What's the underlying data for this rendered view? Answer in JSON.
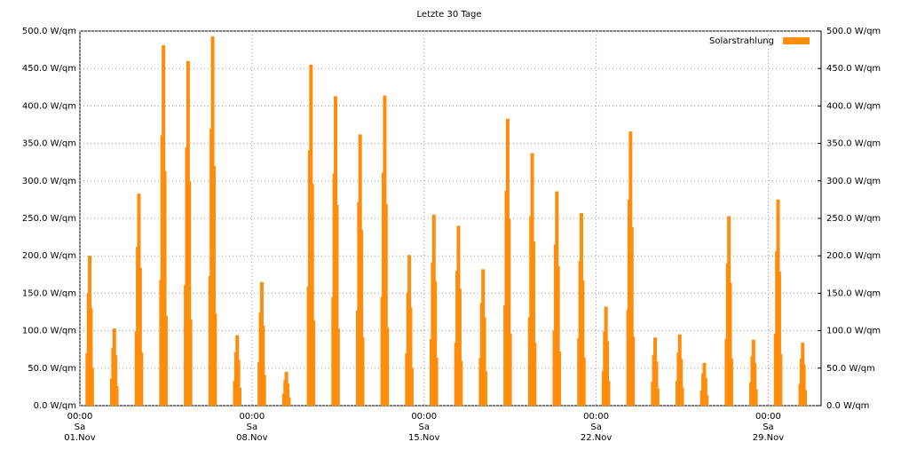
{
  "chart_data": {
    "type": "bar",
    "title": "Letzte 30 Tage",
    "legend": "upper right",
    "grid": true,
    "series": [
      {
        "name": "Solarstrahlung",
        "color": "#ff8c0a",
        "x": [
          0.3,
          0.35,
          0.4,
          0.45,
          0.5,
          1.3,
          1.35,
          1.4,
          1.45,
          1.5,
          2.3,
          2.35,
          2.4,
          2.45,
          2.5,
          3.3,
          3.35,
          3.4,
          3.45,
          3.5,
          4.3,
          4.35,
          4.4,
          4.45,
          4.5,
          5.3,
          5.35,
          5.4,
          5.45,
          5.5,
          6.3,
          6.35,
          6.4,
          6.45,
          6.5,
          7.3,
          7.35,
          7.4,
          7.45,
          7.5,
          8.3,
          8.35,
          8.4,
          8.45,
          8.5,
          9.3,
          9.35,
          9.4,
          9.45,
          9.5,
          10.3,
          10.35,
          10.4,
          10.45,
          10.5,
          11.3,
          11.35,
          11.4,
          11.45,
          11.5,
          12.3,
          12.35,
          12.4,
          12.45,
          12.5,
          13.3,
          13.35,
          13.4,
          13.45,
          13.5,
          14.3,
          14.35,
          14.4,
          14.45,
          14.5,
          15.3,
          15.35,
          15.4,
          15.45,
          15.5,
          16.3,
          16.35,
          16.4,
          16.45,
          16.5,
          17.3,
          17.35,
          17.4,
          17.45,
          17.5,
          18.3,
          18.35,
          18.4,
          18.45,
          18.5,
          19.3,
          19.35,
          19.4,
          19.45,
          19.5,
          20.3,
          20.35,
          20.4,
          20.45,
          20.5,
          21.3,
          21.35,
          21.4,
          21.45,
          21.5,
          22.3,
          22.35,
          22.4,
          22.45,
          22.5,
          23.3,
          23.35,
          23.4,
          23.45,
          23.5,
          24.3,
          24.35,
          24.4,
          24.45,
          24.5,
          25.3,
          25.35,
          25.4,
          25.45,
          25.5,
          26.3,
          26.35,
          26.4,
          26.45,
          26.5,
          27.3,
          27.35,
          27.4,
          27.45,
          27.5,
          28.3,
          28.35,
          28.4,
          28.45,
          28.5,
          29.3,
          29.35,
          29.4,
          29.45,
          29.5
        ],
        "values": [
          70,
          150,
          200,
          130,
          50,
          36,
          77,
          103,
          67,
          26,
          99,
          212,
          283,
          184,
          71,
          168,
          361,
          481,
          313,
          120,
          161,
          345,
          460,
          299,
          115,
          173,
          370,
          493,
          320,
          123,
          33,
          71,
          94,
          61,
          24,
          58,
          124,
          165,
          107,
          41,
          16,
          34,
          45,
          29,
          11,
          159,
          341,
          455,
          296,
          114,
          145,
          310,
          413,
          268,
          103,
          127,
          272,
          362,
          235,
          91,
          145,
          311,
          414,
          269,
          104,
          70,
          151,
          201,
          131,
          50,
          89,
          191,
          255,
          166,
          64,
          84,
          180,
          240,
          156,
          60,
          64,
          137,
          182,
          118,
          46,
          134,
          287,
          383,
          249,
          96,
          118,
          253,
          337,
          219,
          84,
          100,
          215,
          286,
          186,
          72,
          90,
          193,
          257,
          167,
          64,
          46,
          99,
          132,
          86,
          33,
          128,
          275,
          366,
          238,
          92,
          32,
          68,
          91,
          59,
          23,
          33,
          71,
          95,
          62,
          24,
          20,
          43,
          57,
          37,
          14,
          89,
          190,
          253,
          164,
          63,
          31,
          66,
          88,
          57,
          22,
          96,
          206,
          275,
          179,
          69,
          29,
          63,
          84,
          55,
          21
        ]
      }
    ],
    "xlim": [
      0,
      30.15
    ],
    "xticks": [
      {
        "value": 0,
        "label": [
          "00:00",
          "Sa",
          "01.Nov"
        ]
      },
      {
        "value": 7,
        "label": [
          "00:00",
          "Sa",
          "08.Nov"
        ]
      },
      {
        "value": 14,
        "label": [
          "00:00",
          "Sa",
          "15.Nov"
        ]
      },
      {
        "value": 21,
        "label": [
          "00:00",
          "Sa",
          "22.Nov"
        ]
      },
      {
        "value": 28,
        "label": [
          "00:00",
          "Sa",
          "29.Nov"
        ]
      }
    ],
    "ylim": [
      0,
      500
    ],
    "yticks": [
      {
        "value": 0,
        "label": "0.0 W/qm"
      },
      {
        "value": 50,
        "label": "50.0 W/qm"
      },
      {
        "value": 100,
        "label": "100.0 W/qm"
      },
      {
        "value": 150,
        "label": "150.0 W/qm"
      },
      {
        "value": 200,
        "label": "200.0 W/qm"
      },
      {
        "value": 250,
        "label": "250.0 W/qm"
      },
      {
        "value": 300,
        "label": "300.0 W/qm"
      },
      {
        "value": 350,
        "label": "350.0 W/qm"
      },
      {
        "value": 400,
        "label": "400.0 W/qm"
      },
      {
        "value": 450,
        "label": "450.0 W/qm"
      },
      {
        "value": 500,
        "label": "500.0 W/qm"
      }
    ],
    "y2lim": [
      0,
      500
    ],
    "y2ticks": [
      {
        "value": 0,
        "label": "0.0 W/qm"
      },
      {
        "value": 50,
        "label": "50.0 W/qm"
      },
      {
        "value": 100,
        "label": "100.0 W/qm"
      },
      {
        "value": 150,
        "label": "150.0 W/qm"
      },
      {
        "value": 200,
        "label": "200.0 W/qm"
      },
      {
        "value": 250,
        "label": "250.0 W/qm"
      },
      {
        "value": 300,
        "label": "300.0 W/qm"
      },
      {
        "value": 350,
        "label": "350.0 W/qm"
      },
      {
        "value": 400,
        "label": "400.0 W/qm"
      },
      {
        "value": 450,
        "label": "450.0 W/qm"
      },
      {
        "value": 500,
        "label": "500.0 W/qm"
      }
    ]
  }
}
